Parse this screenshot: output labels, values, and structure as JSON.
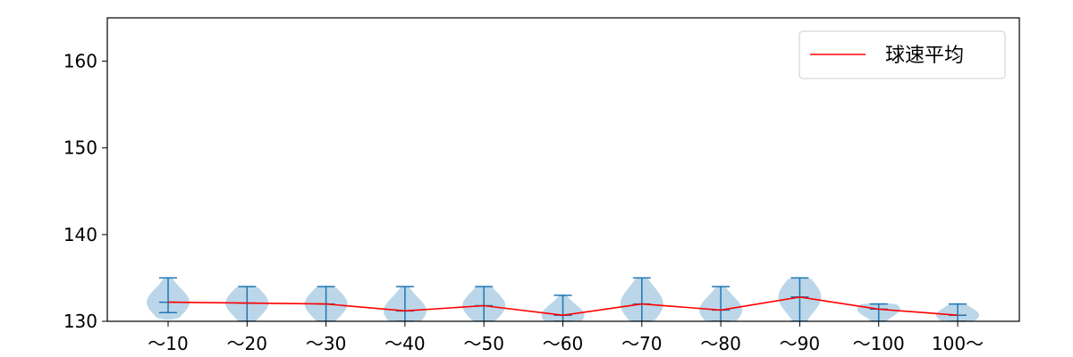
{
  "chart_data": {
    "type": "violin",
    "title": "",
    "xlabel": "",
    "ylabel": "",
    "ylim": [
      130,
      165
    ],
    "yticks": [
      "130",
      "140",
      "150",
      "160"
    ],
    "ytick_values": [
      130,
      140,
      150,
      160
    ],
    "categories": [
      "～10",
      "～20",
      "～30",
      "～40",
      "～50",
      "～60",
      "～70",
      "～80",
      "～90",
      "～100",
      "100～"
    ],
    "violins": [
      {
        "min": 131,
        "max": 135,
        "mean": 132.2
      },
      {
        "min": 130,
        "max": 134,
        "mean": 132.1
      },
      {
        "min": 130,
        "max": 134,
        "mean": 132.0
      },
      {
        "min": 130,
        "max": 134,
        "mean": 131.2
      },
      {
        "min": 130,
        "max": 134,
        "mean": 131.8
      },
      {
        "min": 130,
        "max": 133,
        "mean": 130.7
      },
      {
        "min": 130,
        "max": 135,
        "mean": 132.0
      },
      {
        "min": 130,
        "max": 134,
        "mean": 131.3
      },
      {
        "min": 130,
        "max": 135,
        "mean": 132.8
      },
      {
        "min": 130,
        "max": 132,
        "mean": 131.4
      },
      {
        "min": 130,
        "max": 132,
        "mean": 130.7
      }
    ],
    "series": [
      {
        "name": "球速平均",
        "values": [
          132.2,
          132.1,
          132.0,
          131.2,
          131.8,
          130.7,
          132.0,
          131.3,
          132.8,
          131.4,
          130.7
        ]
      }
    ],
    "colors": {
      "violin_fill": "#1f77b4",
      "line": "#ff0000",
      "axis": "#000000"
    },
    "legend_position": "top-right",
    "grid": false
  }
}
